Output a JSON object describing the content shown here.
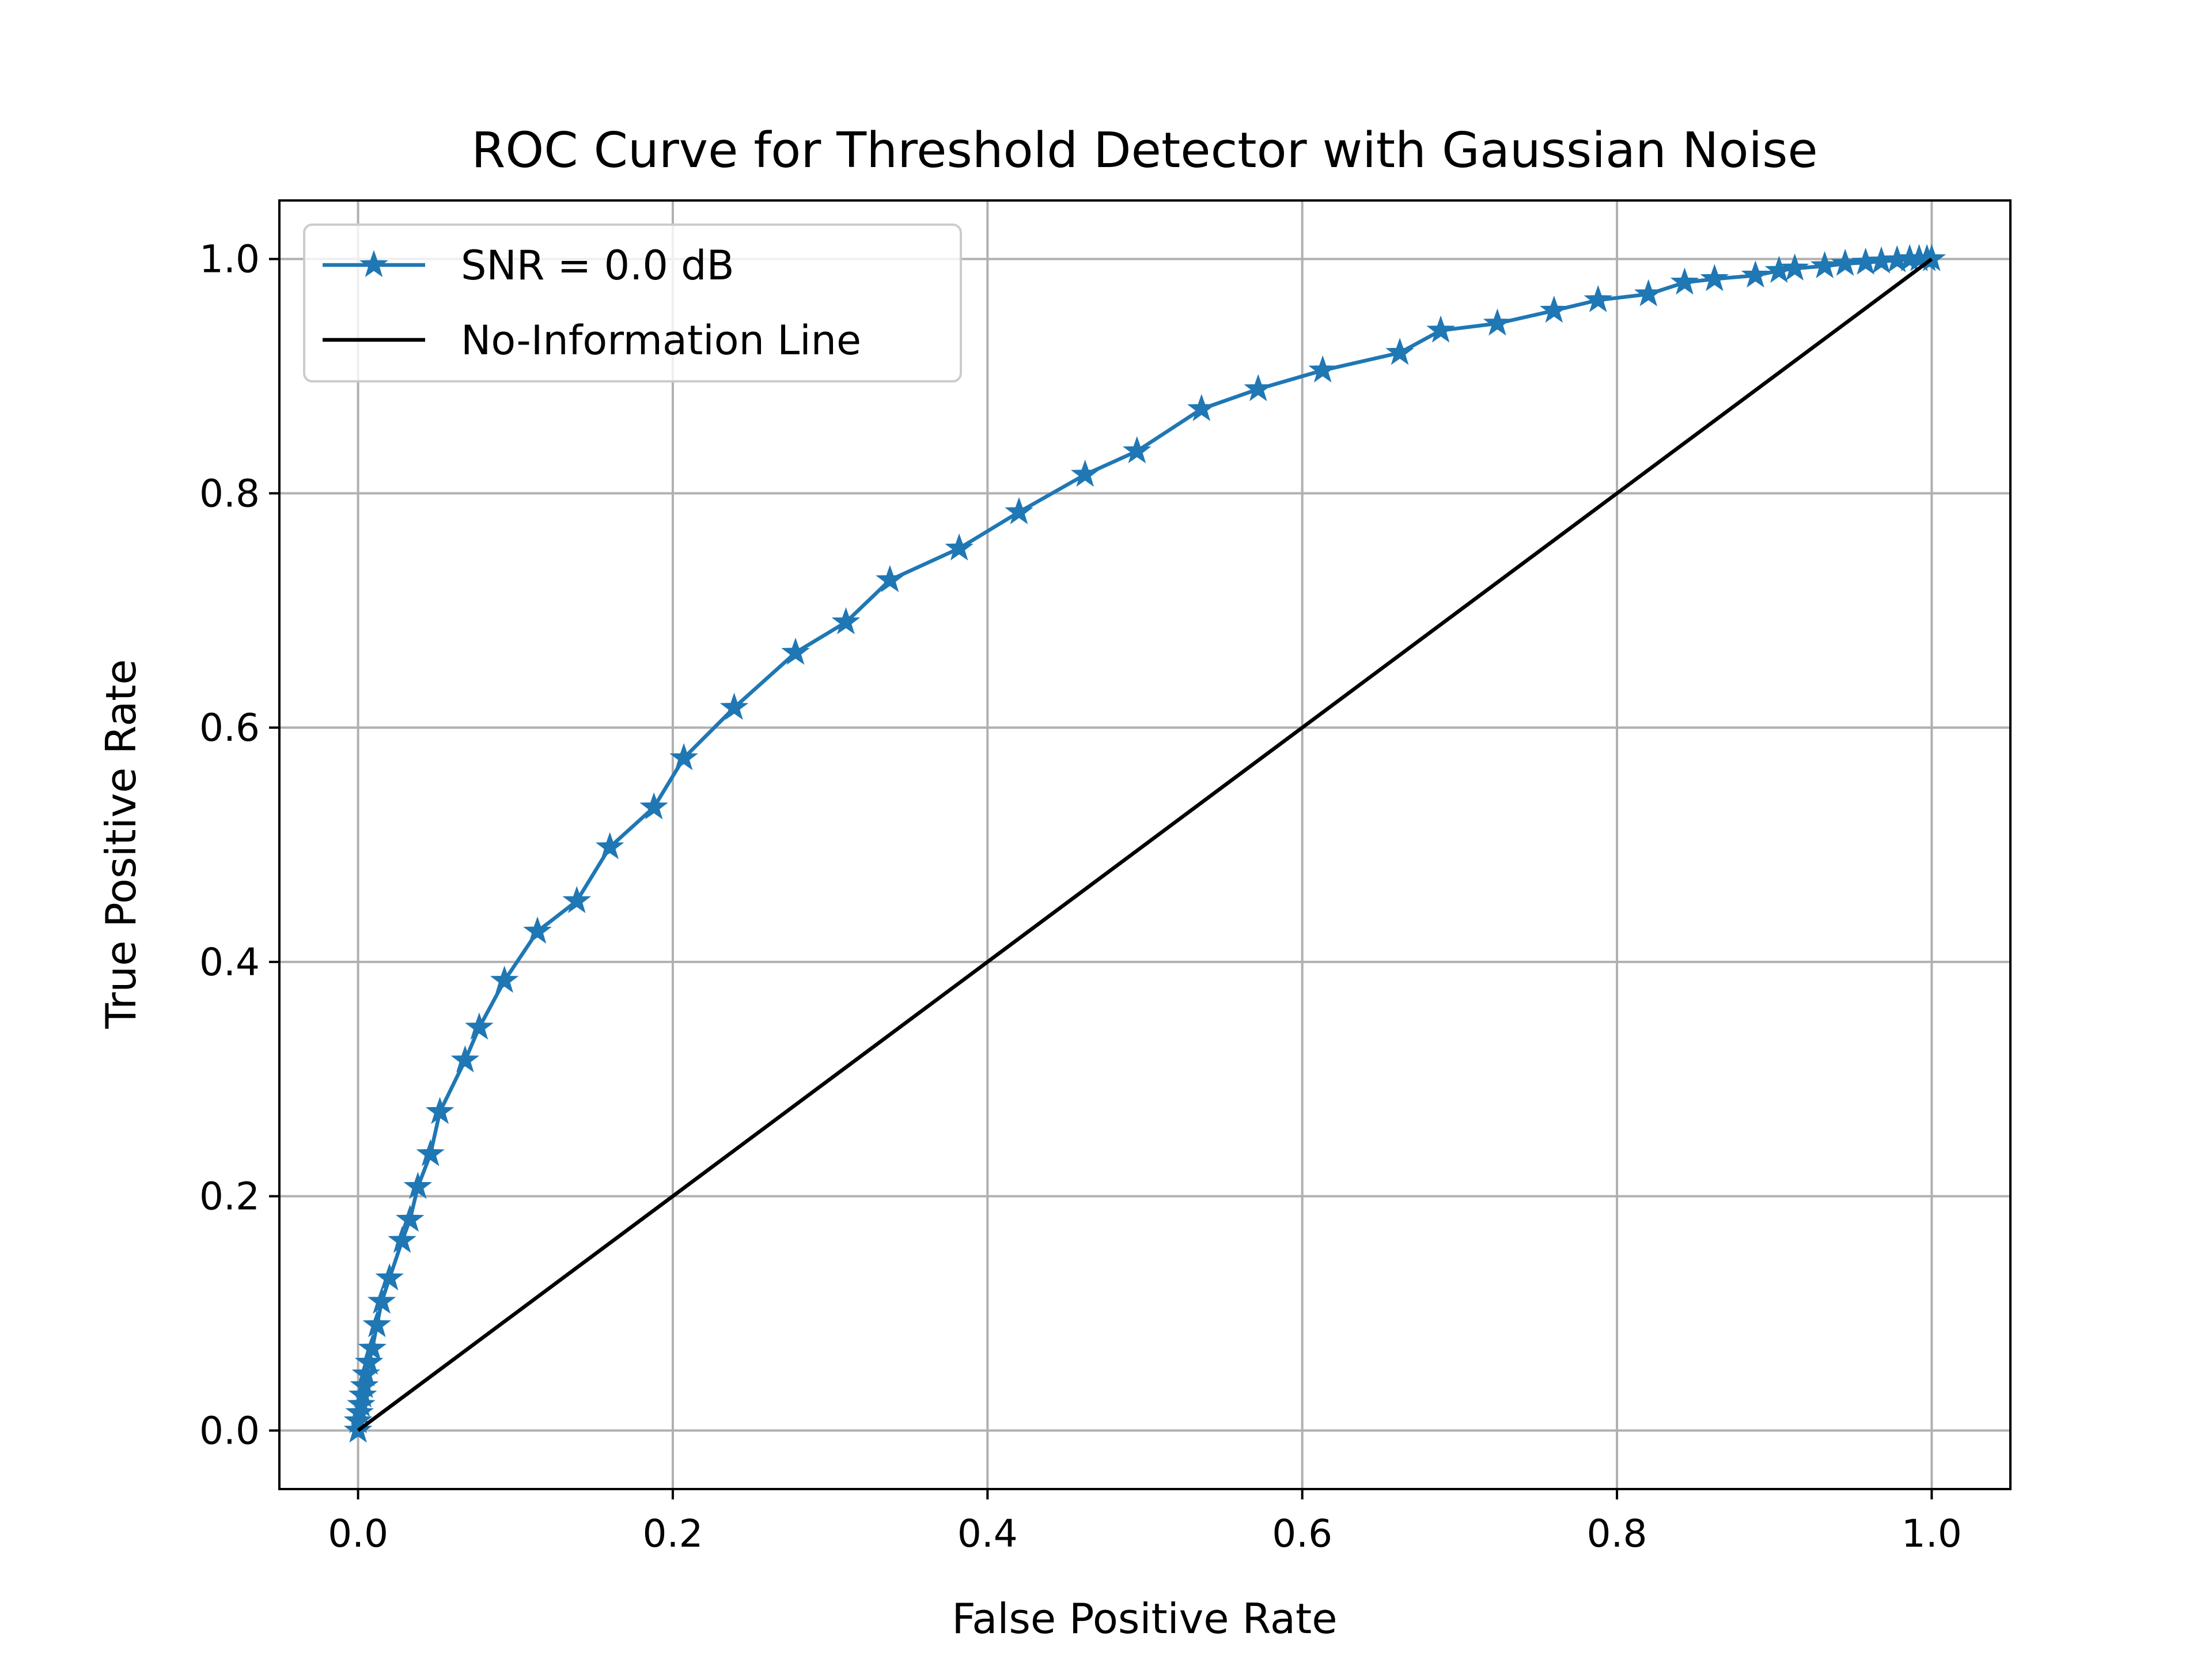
{
  "chart_data": {
    "type": "line",
    "title": "ROC Curve for Threshold Detector with Gaussian Noise",
    "xlabel": "False Positive Rate",
    "ylabel": "True Positive Rate",
    "xlim": [
      -0.05,
      1.05
    ],
    "ylim": [
      -0.05,
      1.05
    ],
    "xticks": [
      0.0,
      0.2,
      0.4,
      0.6,
      0.8,
      1.0
    ],
    "yticks": [
      0.0,
      0.2,
      0.4,
      0.6,
      0.8,
      1.0
    ],
    "xtick_labels": [
      "0.0",
      "0.2",
      "0.4",
      "0.6",
      "0.8",
      "1.0"
    ],
    "ytick_labels": [
      "0.0",
      "0.2",
      "0.4",
      "0.6",
      "0.8",
      "1.0"
    ],
    "grid": true,
    "legend_position": "upper-left",
    "series": [
      {
        "name": "SNR = 0.0 dB",
        "color": "#1f77b4",
        "marker": "star",
        "x": [
          0.0,
          0.0,
          0.001,
          0.002,
          0.003,
          0.004,
          0.005,
          0.007,
          0.009,
          0.012,
          0.015,
          0.02,
          0.028,
          0.033,
          0.038,
          0.046,
          0.052,
          0.068,
          0.077,
          0.093,
          0.114,
          0.139,
          0.16,
          0.188,
          0.207,
          0.239,
          0.278,
          0.31,
          0.338,
          0.382,
          0.42,
          0.462,
          0.495,
          0.536,
          0.572,
          0.613,
          0.662,
          0.688,
          0.724,
          0.76,
          0.788,
          0.82,
          0.843,
          0.862,
          0.888,
          0.903,
          0.913,
          0.932,
          0.945,
          0.958,
          0.968,
          0.978,
          0.986,
          0.992,
          0.997,
          1.0
        ],
        "y": [
          0.0,
          0.008,
          0.015,
          0.022,
          0.03,
          0.038,
          0.048,
          0.058,
          0.07,
          0.09,
          0.11,
          0.13,
          0.162,
          0.18,
          0.208,
          0.236,
          0.272,
          0.316,
          0.344,
          0.384,
          0.426,
          0.452,
          0.498,
          0.532,
          0.574,
          0.617,
          0.664,
          0.69,
          0.726,
          0.753,
          0.784,
          0.816,
          0.836,
          0.872,
          0.889,
          0.905,
          0.92,
          0.939,
          0.945,
          0.956,
          0.965,
          0.97,
          0.98,
          0.983,
          0.986,
          0.99,
          0.992,
          0.994,
          0.996,
          0.997,
          0.998,
          0.999,
          1.0,
          1.0,
          1.0,
          1.0
        ]
      },
      {
        "name": "No-Information Line",
        "color": "#000000",
        "marker": "none",
        "x": [
          0.0,
          1.0
        ],
        "y": [
          0.0,
          1.0
        ]
      }
    ]
  }
}
